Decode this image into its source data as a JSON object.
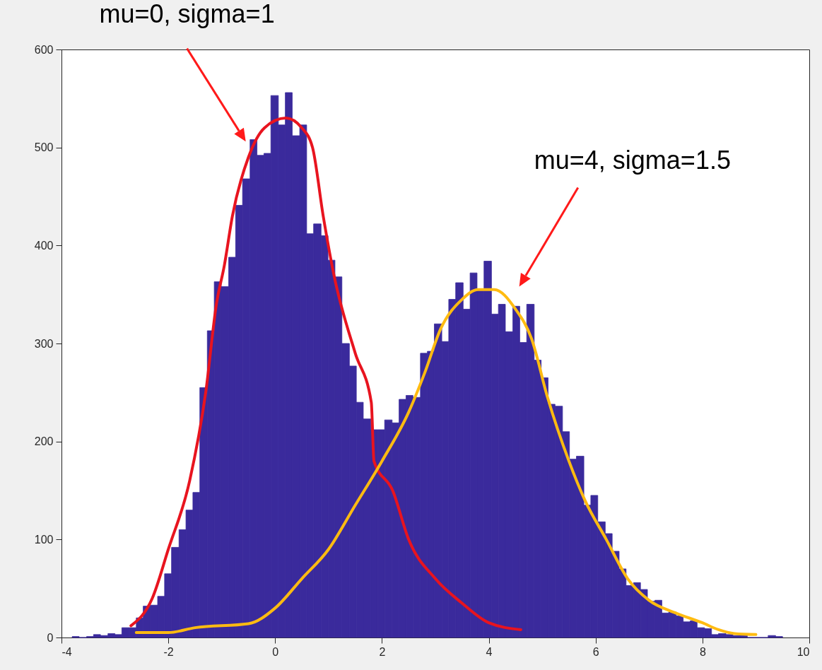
{
  "chart_data": {
    "type": "histogram",
    "color": "#3a2a9c",
    "bins": [
      -3.8,
      -3.67,
      -3.53,
      -3.4,
      -3.27,
      -3.13,
      -3.0,
      -2.87,
      -2.74,
      -2.6,
      -2.47,
      -2.34,
      -2.2,
      -2.07,
      -1.94,
      -1.8,
      -1.67,
      -1.54,
      -1.41,
      -1.27,
      -1.14,
      -1.01,
      -0.87,
      -0.74,
      -0.61,
      -0.47,
      -0.34,
      -0.21,
      -0.08,
      0.06,
      0.19,
      0.32,
      0.46,
      0.59,
      0.72,
      0.86,
      0.99,
      1.12,
      1.25,
      1.39,
      1.52,
      1.65,
      1.79,
      1.92,
      2.05,
      2.19,
      2.32,
      2.45,
      2.58,
      2.72,
      2.85,
      2.98,
      3.12,
      3.25,
      3.38,
      3.52,
      3.65,
      3.78,
      3.91,
      4.05,
      4.18,
      4.31,
      4.45,
      4.58,
      4.71,
      4.85,
      4.98,
      5.11,
      5.24,
      5.38,
      5.51,
      5.64,
      5.78,
      5.91,
      6.04,
      6.18,
      6.31,
      6.44,
      6.57,
      6.71,
      6.84,
      6.97,
      7.11,
      7.24,
      7.37,
      7.51,
      7.64,
      7.77,
      7.9,
      8.04,
      8.17,
      8.3,
      8.44,
      8.57,
      8.7,
      8.84,
      8.97,
      9.1,
      9.23,
      9.37,
      9.5
    ],
    "values": [
      1,
      0,
      1,
      3,
      2,
      4,
      3,
      10,
      10,
      20,
      32,
      33,
      42,
      65,
      92,
      110,
      130,
      148,
      255,
      313,
      363,
      358,
      388,
      441,
      468,
      508,
      492,
      494,
      553,
      523,
      556,
      512,
      523,
      412,
      422,
      410,
      385,
      368,
      300,
      277,
      240,
      223,
      212,
      212,
      222,
      219,
      243,
      247,
      245,
      290,
      292,
      320,
      302,
      345,
      362,
      335,
      372,
      355,
      384,
      330,
      340,
      312,
      338,
      301,
      340,
      283,
      265,
      238,
      236,
      210,
      182,
      185,
      135,
      145,
      118,
      106,
      88,
      70,
      53,
      56,
      49,
      37,
      38,
      25,
      26,
      22,
      16,
      17,
      10,
      9,
      3,
      4,
      3,
      2,
      2,
      0,
      0,
      0,
      2,
      1
    ],
    "series": [
      {
        "type": "line",
        "color": "#e8141f",
        "x": [
          -2.7,
          -2.3,
          -2,
          -1.6,
          -1.3,
          -1.1,
          -0.95,
          -0.8,
          -0.5,
          -0.2,
          0.2,
          0.5,
          0.7,
          0.9,
          1.1,
          1.5,
          1.8,
          1.85,
          2.2,
          2.5,
          3,
          3.5,
          4,
          4.6
        ],
        "values": [
          12,
          40,
          90,
          160,
          250,
          340,
          380,
          430,
          490,
          520,
          530,
          520,
          500,
          430,
          370,
          290,
          240,
          180,
          150,
          100,
          60,
          35,
          15,
          8
        ]
      },
      {
        "type": "line",
        "color": "#ffbb11",
        "x": [
          -2.6,
          -2,
          -1.5,
          -0.5,
          0,
          0.5,
          1,
          1.5,
          2,
          2.5,
          2.8,
          3.1,
          3.5,
          3.8,
          4.1,
          4.5,
          4.8,
          5.1,
          5.5,
          5.8,
          6.2,
          6.6,
          7,
          7.5,
          8,
          8.3,
          8.6,
          9
        ],
        "values": [
          5,
          5,
          10,
          14,
          30,
          60,
          90,
          135,
          180,
          230,
          270,
          315,
          345,
          355,
          355,
          335,
          305,
          245,
          180,
          140,
          100,
          60,
          38,
          25,
          15,
          8,
          4,
          3
        ]
      }
    ],
    "annotations": [
      "mu=0, sigma=1",
      "mu=4, sigma=1.5"
    ],
    "xlim": [
      -4,
      10
    ],
    "xticks": [
      -4,
      -2,
      0,
      2,
      4,
      6,
      8,
      10
    ],
    "ylim": [
      0,
      600
    ],
    "yticks": [
      0,
      100,
      200,
      300,
      400,
      500,
      600
    ],
    "grid": false,
    "line_style": "solid"
  }
}
